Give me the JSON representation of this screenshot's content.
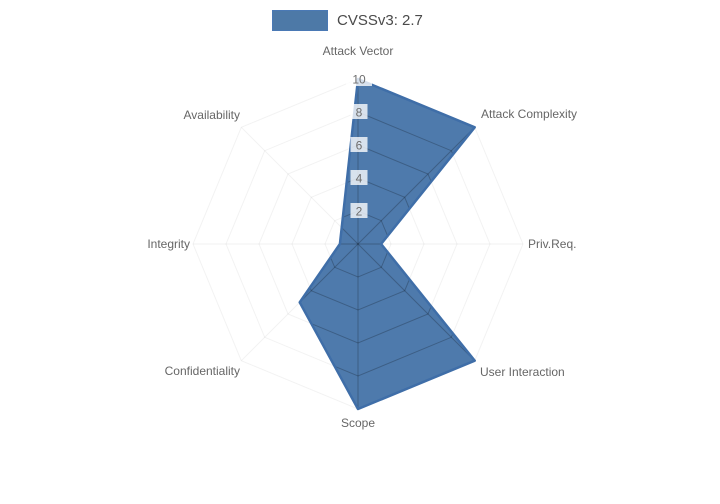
{
  "legend": {
    "label": "CVSSv3: 2.7",
    "swatch_fill": "#4d79a7",
    "swatch_border": "#4a79b5"
  },
  "chart_data": {
    "type": "radar",
    "title": "CVSSv3: 2.7",
    "categories": [
      "Attack Vector",
      "Attack Complexity",
      "Priv.Req.",
      "User Interaction",
      "Scope",
      "Confidentiality",
      "Integrity",
      "Availability"
    ],
    "series": [
      {
        "name": "CVSSv3: 2.7",
        "values": [
          10,
          10,
          1.4,
          10,
          10,
          5,
          1.1,
          1.4
        ]
      }
    ],
    "rmin": 0,
    "rmax": 10,
    "ticks": [
      2,
      4,
      6,
      8,
      10
    ],
    "grid": true,
    "grid_shape": "polygon",
    "legend_position": "top",
    "fill_color": "rgba(63,111,165,0.92)",
    "border_color": "#3f6ea8",
    "grid_line_color": "rgba(0,0,0,0.22)",
    "outer_grid_line_color": "rgba(0,0,0,0.05)",
    "tick_backdrop_color": "rgba(255,255,255,0.78)",
    "label_color": "#666666",
    "tick_color": "#6e6e6e"
  }
}
